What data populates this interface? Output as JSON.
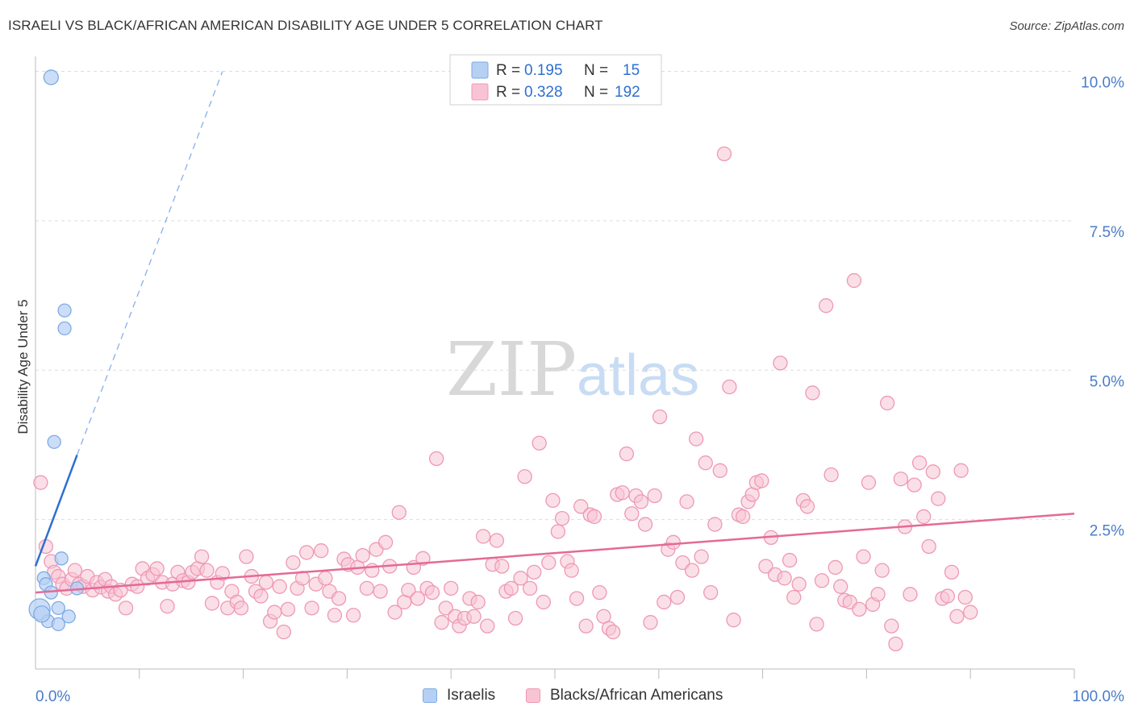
{
  "title": "ISRAELI VS BLACK/AFRICAN AMERICAN DISABILITY AGE UNDER 5 CORRELATION CHART",
  "source": "Source: ZipAtlas.com",
  "watermark": {
    "zip": "ZIP",
    "atlas": "atlas"
  },
  "colors": {
    "israeli_fill": "#b6d0f3",
    "israeli_stroke": "#7eaae6",
    "israeli_line": "#2e6fd0",
    "black_fill": "#f8c4d4",
    "black_stroke": "#ee98b6",
    "black_line": "#e46a96",
    "axis_text": "#4a7cc9",
    "grid": "#dddddd"
  },
  "legend_top": {
    "rows": [
      {
        "r_label": "R =",
        "r_value": "0.195",
        "n_label": "N =",
        "n_value": "15"
      },
      {
        "r_label": "R =",
        "r_value": "0.328",
        "n_label": "N =",
        "n_value": "192"
      }
    ]
  },
  "legend_bottom": {
    "israelis": "Israelis",
    "blacks": "Blacks/African Americans"
  },
  "chart_data": {
    "type": "scatter",
    "title": "ISRAELI VS BLACK/AFRICAN AMERICAN DISABILITY AGE UNDER 5 CORRELATION CHART",
    "xlabel": "",
    "ylabel": "Disability Age Under 5",
    "xlim": [
      0,
      100
    ],
    "ylim": [
      0,
      10.25
    ],
    "x_tick_labels": [
      "0.0%",
      "100.0%"
    ],
    "y_ticks": [
      2.5,
      5.0,
      7.5,
      10.0
    ],
    "y_tick_labels": [
      "2.5%",
      "5.0%",
      "7.5%",
      "10.0%"
    ],
    "grid": true,
    "legend_placement": "top-center",
    "series": [
      {
        "name": "Israelis",
        "R": 0.195,
        "N": 15,
        "trend": {
          "x0": 0.0,
          "y0": 1.72,
          "x1": 4.0,
          "y1": 3.58,
          "dashed_to_x": 18.0,
          "dashed_to_y": 10.0
        },
        "points": [
          [
            1.5,
            9.9,
            9
          ],
          [
            1.8,
            3.8,
            8
          ],
          [
            2.8,
            6.0,
            8
          ],
          [
            2.8,
            5.7,
            8
          ],
          [
            2.5,
            1.85,
            8
          ],
          [
            0.8,
            1.52,
            8
          ],
          [
            1.0,
            1.42,
            8
          ],
          [
            1.5,
            1.28,
            8
          ],
          [
            4.0,
            1.35,
            8
          ],
          [
            0.4,
            1.0,
            13
          ],
          [
            2.2,
            1.02,
            8
          ],
          [
            3.2,
            0.88,
            8
          ],
          [
            1.2,
            0.8,
            8
          ],
          [
            2.2,
            0.75,
            8
          ],
          [
            0.6,
            0.92,
            10
          ]
        ]
      },
      {
        "name": "Blacks/African Americans",
        "R": 0.328,
        "N": 192,
        "trend": {
          "x0": 0.0,
          "y0": 1.28,
          "x1": 100.0,
          "y1": 2.6
        },
        "points": [
          [
            0.5,
            3.12
          ],
          [
            1.0,
            2.05
          ],
          [
            1.5,
            1.8
          ],
          [
            1.8,
            1.62
          ],
          [
            2.2,
            1.55
          ],
          [
            2.6,
            1.42
          ],
          [
            3.0,
            1.35
          ],
          [
            3.5,
            1.5
          ],
          [
            3.8,
            1.65
          ],
          [
            4.2,
            1.42
          ],
          [
            4.6,
            1.38
          ],
          [
            5.0,
            1.55
          ],
          [
            5.5,
            1.32
          ],
          [
            5.9,
            1.45
          ],
          [
            6.3,
            1.37
          ],
          [
            6.7,
            1.5
          ],
          [
            7.0,
            1.3
          ],
          [
            7.3,
            1.38
          ],
          [
            7.7,
            1.25
          ],
          [
            8.2,
            1.32
          ],
          [
            8.7,
            1.02
          ],
          [
            9.3,
            1.42
          ],
          [
            9.8,
            1.38
          ],
          [
            10.3,
            1.68
          ],
          [
            10.8,
            1.52
          ],
          [
            11.3,
            1.58
          ],
          [
            11.7,
            1.68
          ],
          [
            12.2,
            1.45
          ],
          [
            12.7,
            1.05
          ],
          [
            13.2,
            1.42
          ],
          [
            13.7,
            1.62
          ],
          [
            14.2,
            1.48
          ],
          [
            14.7,
            1.45
          ],
          [
            15.1,
            1.62
          ],
          [
            15.6,
            1.68
          ],
          [
            16.0,
            1.88
          ],
          [
            16.5,
            1.65
          ],
          [
            17.0,
            1.1
          ],
          [
            17.5,
            1.45
          ],
          [
            18.0,
            1.6
          ],
          [
            18.5,
            1.02
          ],
          [
            18.9,
            1.3
          ],
          [
            19.4,
            1.12
          ],
          [
            19.8,
            1.02
          ],
          [
            20.3,
            1.88
          ],
          [
            20.8,
            1.55
          ],
          [
            21.2,
            1.3
          ],
          [
            21.7,
            1.22
          ],
          [
            22.2,
            1.45
          ],
          [
            22.6,
            0.8
          ],
          [
            23.0,
            0.95
          ],
          [
            23.5,
            1.38
          ],
          [
            23.9,
            0.62
          ],
          [
            24.3,
            1.0
          ],
          [
            24.8,
            1.78
          ],
          [
            25.2,
            1.35
          ],
          [
            25.7,
            1.52
          ],
          [
            26.1,
            1.95
          ],
          [
            26.6,
            1.02
          ],
          [
            27.0,
            1.42
          ],
          [
            27.5,
            1.98
          ],
          [
            27.9,
            1.52
          ],
          [
            28.3,
            1.3
          ],
          [
            28.8,
            0.9
          ],
          [
            29.2,
            1.18
          ],
          [
            29.7,
            1.84
          ],
          [
            30.1,
            1.75
          ],
          [
            30.6,
            0.9
          ],
          [
            31.0,
            1.7
          ],
          [
            31.5,
            1.9
          ],
          [
            31.9,
            1.35
          ],
          [
            32.4,
            1.65
          ],
          [
            32.8,
            2.0
          ],
          [
            33.2,
            1.3
          ],
          [
            33.7,
            2.12
          ],
          [
            34.1,
            1.72
          ],
          [
            34.6,
            0.95
          ],
          [
            35.0,
            2.62
          ],
          [
            35.5,
            1.12
          ],
          [
            35.9,
            1.32
          ],
          [
            36.4,
            1.7
          ],
          [
            36.8,
            1.18
          ],
          [
            37.3,
            1.85
          ],
          [
            37.7,
            1.35
          ],
          [
            38.2,
            1.28
          ],
          [
            38.6,
            3.52
          ],
          [
            39.1,
            0.78
          ],
          [
            39.5,
            1.02
          ],
          [
            40.0,
            1.35
          ],
          [
            40.4,
            0.88
          ],
          [
            40.8,
            0.72
          ],
          [
            41.3,
            0.85
          ],
          [
            41.8,
            1.18
          ],
          [
            42.2,
            0.88
          ],
          [
            42.6,
            1.12
          ],
          [
            43.1,
            2.22
          ],
          [
            43.5,
            0.72
          ],
          [
            44.0,
            1.75
          ],
          [
            44.4,
            2.15
          ],
          [
            44.9,
            1.72
          ],
          [
            45.3,
            1.3
          ],
          [
            45.8,
            1.35
          ],
          [
            46.2,
            0.85
          ],
          [
            46.7,
            1.52
          ],
          [
            47.1,
            3.22
          ],
          [
            47.6,
            1.35
          ],
          [
            48.0,
            1.62
          ],
          [
            48.5,
            3.78
          ],
          [
            48.9,
            1.12
          ],
          [
            49.4,
            1.78
          ],
          [
            49.8,
            2.82
          ],
          [
            50.3,
            2.3
          ],
          [
            50.7,
            2.52
          ],
          [
            51.2,
            1.8
          ],
          [
            51.6,
            1.65
          ],
          [
            52.1,
            1.18
          ],
          [
            52.5,
            2.72
          ],
          [
            53.0,
            0.72
          ],
          [
            53.4,
            2.58
          ],
          [
            53.8,
            2.55
          ],
          [
            54.3,
            1.28
          ],
          [
            54.7,
            0.88
          ],
          [
            55.2,
            0.68
          ],
          [
            55.6,
            0.62
          ],
          [
            56.0,
            2.92
          ],
          [
            56.5,
            2.95
          ],
          [
            56.9,
            3.6
          ],
          [
            57.4,
            2.6
          ],
          [
            57.8,
            2.9
          ],
          [
            58.3,
            2.8
          ],
          [
            58.7,
            2.42
          ],
          [
            59.2,
            0.78
          ],
          [
            59.6,
            2.9
          ],
          [
            60.1,
            4.22
          ],
          [
            60.5,
            1.12
          ],
          [
            60.9,
            2.0
          ],
          [
            61.4,
            2.12
          ],
          [
            61.8,
            1.2
          ],
          [
            62.3,
            1.78
          ],
          [
            62.7,
            2.8
          ],
          [
            63.2,
            1.65
          ],
          [
            63.6,
            3.85
          ],
          [
            64.1,
            1.88
          ],
          [
            64.5,
            3.45
          ],
          [
            65.0,
            1.28
          ],
          [
            65.4,
            2.42
          ],
          [
            65.9,
            3.32
          ],
          [
            66.3,
            8.62
          ],
          [
            66.8,
            4.72
          ],
          [
            67.2,
            0.82
          ],
          [
            67.7,
            2.58
          ],
          [
            68.1,
            2.55
          ],
          [
            68.6,
            2.8
          ],
          [
            69.0,
            2.92
          ],
          [
            69.4,
            3.12
          ],
          [
            69.9,
            3.15
          ],
          [
            70.3,
            1.72
          ],
          [
            70.8,
            2.2
          ],
          [
            71.2,
            1.58
          ],
          [
            71.7,
            5.12
          ],
          [
            72.1,
            1.52
          ],
          [
            72.6,
            1.82
          ],
          [
            73.0,
            1.2
          ],
          [
            73.5,
            1.42
          ],
          [
            73.9,
            2.82
          ],
          [
            74.3,
            2.72
          ],
          [
            74.8,
            4.62
          ],
          [
            75.2,
            0.75
          ],
          [
            75.7,
            1.48
          ],
          [
            76.1,
            6.08
          ],
          [
            76.6,
            3.25
          ],
          [
            77.0,
            1.7
          ],
          [
            77.5,
            1.38
          ],
          [
            77.9,
            1.15
          ],
          [
            78.4,
            1.12
          ],
          [
            78.8,
            6.5
          ],
          [
            79.3,
            1.0
          ],
          [
            79.7,
            1.88
          ],
          [
            80.2,
            3.12
          ],
          [
            80.6,
            1.08
          ],
          [
            81.1,
            1.25
          ],
          [
            81.5,
            1.65
          ],
          [
            82.0,
            4.45
          ],
          [
            82.4,
            0.72
          ],
          [
            82.8,
            0.42
          ],
          [
            83.3,
            3.18
          ],
          [
            83.7,
            2.38
          ],
          [
            84.2,
            1.25
          ],
          [
            84.6,
            3.08
          ],
          [
            85.1,
            3.45
          ],
          [
            85.5,
            2.55
          ],
          [
            86.0,
            2.05
          ],
          [
            86.4,
            3.3
          ],
          [
            86.9,
            2.85
          ],
          [
            87.3,
            1.18
          ],
          [
            87.8,
            1.22
          ],
          [
            88.2,
            1.62
          ],
          [
            88.7,
            0.88
          ],
          [
            89.1,
            3.32
          ],
          [
            89.5,
            1.2
          ],
          [
            90.0,
            0.95
          ]
        ]
      }
    ]
  }
}
